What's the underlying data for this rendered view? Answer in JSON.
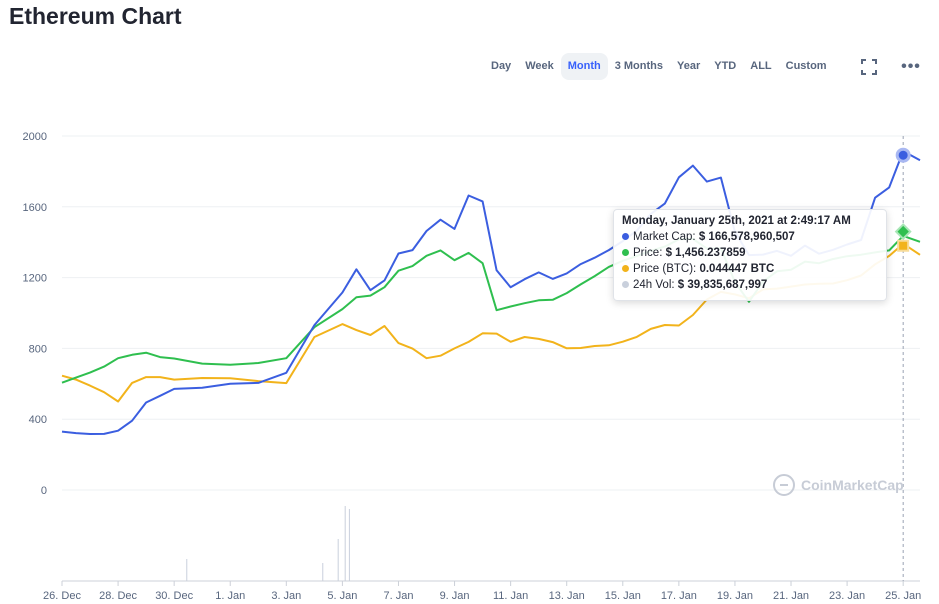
{
  "page": {
    "title": "Ethereum Chart"
  },
  "ranges": [
    "Day",
    "Week",
    "Month",
    "3 Months",
    "Year",
    "YTD",
    "ALL",
    "Custom"
  ],
  "active_range": "Month",
  "toolbar": {
    "fullscreen_icon": "fullscreen-icon",
    "more_icon": "more-icon",
    "more_label": "•••"
  },
  "watermark": {
    "text": "CoinMarketCap"
  },
  "colors": {
    "market_cap": "#3b5ee0",
    "price": "#2fbf4f",
    "price_btc": "#f2b31b",
    "volume": "#c9d0dc",
    "grid": "#eef0f3"
  },
  "tooltip": {
    "date": "Monday, January 25th, 2021 at 2:49:17 AM",
    "rows": [
      {
        "label": "Market Cap:",
        "value": "$ 166,578,960,507",
        "color": "#3b5ee0"
      },
      {
        "label": "Price:",
        "value": "$ 1,456.237859",
        "color": "#2fbf4f"
      },
      {
        "label": "Price (BTC):",
        "value": "0.044447 BTC",
        "color": "#f2b31b"
      },
      {
        "label": "24h Vol:",
        "value": "$ 39,835,687,997",
        "color": "#c9d0dc"
      }
    ]
  },
  "chart_data": {
    "type": "line",
    "title": "Ethereum Chart",
    "x_ticks": [
      "26. Dec",
      "28. Dec",
      "30. Dec",
      "1. Jan",
      "3. Jan",
      "5. Jan",
      "7. Jan",
      "9. Jan",
      "11. Jan",
      "13. Jan",
      "15. Jan",
      "17. Jan",
      "19. Jan",
      "21. Jan",
      "23. Jan",
      "25. Jan"
    ],
    "x_range_days": [
      0,
      30.6
    ],
    "y_ticks": [
      0,
      400,
      800,
      1200,
      1600,
      2000
    ],
    "ylim": [
      0,
      2000
    ],
    "grid": true,
    "crosshair_day": 30.0,
    "series": [
      {
        "name": "Market Cap",
        "color": "#3b5ee0",
        "x": [
          0,
          0.5,
          1,
          1.5,
          2,
          2.5,
          3,
          3.5,
          4,
          5,
          6,
          7,
          8,
          9,
          10,
          10.5,
          11,
          11.5,
          12,
          12.5,
          13,
          13.5,
          14,
          14.5,
          15,
          15.5,
          16,
          16.5,
          17,
          17.5,
          18,
          18.5,
          19,
          19.5,
          20,
          20.5,
          21,
          21.5,
          22,
          22.5,
          23,
          23.5,
          24,
          24.5,
          25,
          25.5,
          26,
          26.5,
          27,
          27.5,
          28,
          28.5,
          29,
          29.5,
          30,
          30.6
        ],
        "values": [
          330,
          340,
          350,
          360,
          380,
          430,
          520,
          540,
          560,
          550,
          560,
          560,
          620,
          900,
          1100,
          1250,
          1150,
          1220,
          1380,
          1400,
          1500,
          1550,
          1480,
          1650,
          1600,
          1200,
          1100,
          1150,
          1200,
          1180,
          1230,
          1300,
          1350,
          1400,
          1450,
          1500,
          1580,
          1620,
          1750,
          1800,
          1700,
          1720,
          1420,
          1300,
          1320,
          1360,
          1350,
          1420,
          1380,
          1400,
          1420,
          1430,
          1650,
          1690,
          1880,
          1820
        ]
      },
      {
        "name": "Price",
        "color": "#2fbf4f",
        "x": [
          0,
          0.5,
          1,
          1.5,
          2,
          2.5,
          3,
          3.5,
          4,
          5,
          6,
          7,
          8,
          9,
          10,
          10.5,
          11,
          11.5,
          12,
          12.5,
          13,
          13.5,
          14,
          14.5,
          15,
          15.5,
          16,
          16.5,
          17,
          17.5,
          18,
          18.5,
          19,
          19.5,
          20,
          20.5,
          21,
          21.5,
          22,
          22.5,
          23,
          23.5,
          24,
          24.5,
          25,
          25.5,
          26,
          26.5,
          27,
          27.5,
          28,
          28.5,
          29,
          29.5,
          30,
          30.6
        ],
        "values": [
          620,
          630,
          640,
          660,
          700,
          720,
          740,
          730,
          740,
          730,
          740,
          760,
          790,
          960,
          1050,
          1100,
          1090,
          1120,
          1200,
          1220,
          1280,
          1320,
          1280,
          1340,
          1300,
          1050,
          1080,
          1100,
          1110,
          1100,
          1120,
          1150,
          1180,
          1220,
          1250,
          1280,
          1320,
          1360,
          1420,
          1440,
          1400,
          1410,
          1220,
          1100,
          1200,
          1240,
          1230,
          1260,
          1240,
          1260,
          1280,
          1300,
          1330,
          1360,
          1460,
          1440
        ]
      },
      {
        "name": "Price (BTC)",
        "color": "#f2b31b",
        "x": [
          0,
          0.5,
          1,
          1.5,
          2,
          2.5,
          3,
          3.5,
          4,
          5,
          6,
          7,
          8,
          9,
          10,
          10.5,
          11,
          11.5,
          12,
          12.5,
          13,
          13.5,
          14,
          14.5,
          15,
          15.5,
          16,
          16.5,
          17,
          17.5,
          18,
          18.5,
          19,
          19.5,
          20,
          20.5,
          21,
          21.5,
          22,
          22.5,
          23,
          23.5,
          24,
          24.5,
          25,
          25.5,
          26,
          26.5,
          27,
          27.5,
          28,
          28.5,
          29,
          29.5,
          30,
          30.6
        ],
        "values": [
          620,
          615,
          600,
          580,
          540,
          650,
          680,
          670,
          640,
          630,
          610,
          580,
          560,
          820,
          900,
          880,
          870,
          940,
          860,
          840,
          790,
          800,
          830,
          850,
          880,
          860,
          800,
          820,
          810,
          800,
          780,
          800,
          830,
          850,
          880,
          910,
          950,
          960,
          940,
          980,
          1050,
          1080,
          1060,
          1040,
          1100,
          1120,
          1150,
          1180,
          1200,
          1210,
          1230,
          1250,
          1300,
          1330,
          1380,
          1300
        ]
      }
    ]
  }
}
